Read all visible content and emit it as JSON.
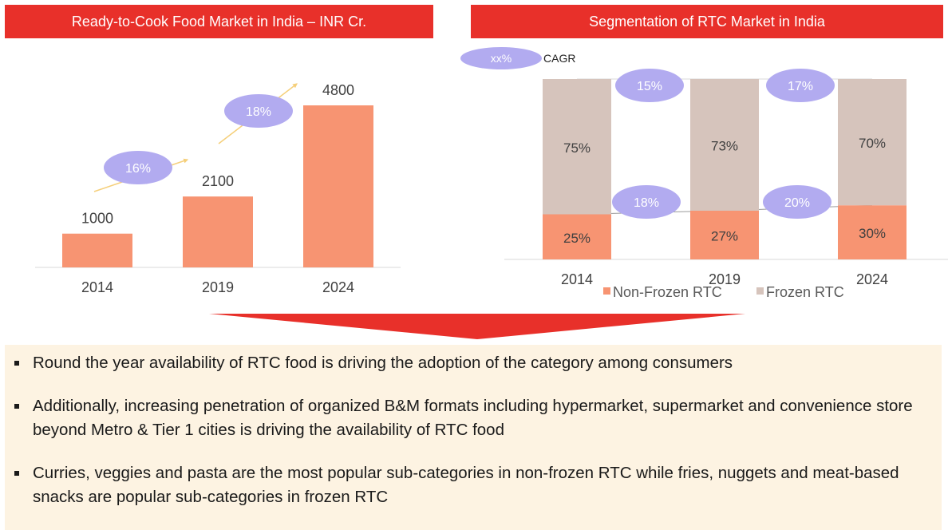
{
  "headers": {
    "left": "Ready-to-Cook Food Market in India – INR Cr.",
    "right": "Segmentation of RTC Market in India"
  },
  "colors": {
    "header_red": "#e8302a",
    "bar_salmon": "#f79472",
    "frozen_beige": "#d6c4bc",
    "cagr_bubble": "#b2abf0",
    "arrow_yellow": "#f5cf7a",
    "panel_bg": "#fdf3e2"
  },
  "chart_data": [
    {
      "type": "bar",
      "title": "Ready-to-Cook Food Market in India – INR Cr.",
      "categories": [
        "2014",
        "2019",
        "2024"
      ],
      "values": [
        1000,
        2100,
        4800
      ],
      "data_labels": [
        "1000",
        "2100",
        "4800"
      ],
      "ylim": [
        0,
        5000
      ],
      "grid": false,
      "annotations": [
        {
          "label": "16%",
          "between": [
            "2014",
            "2019"
          ]
        },
        {
          "label": "18%",
          "between": [
            "2019",
            "2024"
          ]
        }
      ]
    },
    {
      "type": "bar",
      "stacked": true,
      "title": "Segmentation of RTC Market in India",
      "categories": [
        "2014",
        "2019",
        "2024"
      ],
      "series": [
        {
          "name": "Non-Frozen RTC",
          "values": [
            25,
            27,
            30
          ],
          "labels": [
            "25%",
            "27%",
            "30%"
          ]
        },
        {
          "name": "Frozen RTC",
          "values": [
            75,
            73,
            70
          ],
          "labels": [
            "75%",
            "73%",
            "70%"
          ]
        }
      ],
      "ylim": [
        0,
        100
      ],
      "legend_position": "bottom",
      "cagr_key": {
        "bubble": "xx%",
        "label": "CAGR"
      },
      "annotations": [
        {
          "label": "15%",
          "series": "Frozen RTC",
          "between": [
            "2014",
            "2019"
          ]
        },
        {
          "label": "17%",
          "series": "Frozen RTC",
          "between": [
            "2019",
            "2024"
          ]
        },
        {
          "label": "18%",
          "series": "Non-Frozen RTC",
          "between": [
            "2014",
            "2019"
          ]
        },
        {
          "label": "20%",
          "series": "Non-Frozen RTC",
          "between": [
            "2019",
            "2024"
          ]
        }
      ]
    }
  ],
  "bullets": [
    "Round the year availability of RTC food is driving the adoption of the category among consumers",
    "Additionally, increasing penetration of organized B&M formats including hypermarket, supermarket and convenience store beyond Metro & Tier 1 cities is driving the availability of RTC food",
    "Curries, veggies and pasta are the most popular sub-categories in non-frozen RTC while fries, nuggets and meat-based snacks are popular sub-categories in frozen RTC"
  ]
}
